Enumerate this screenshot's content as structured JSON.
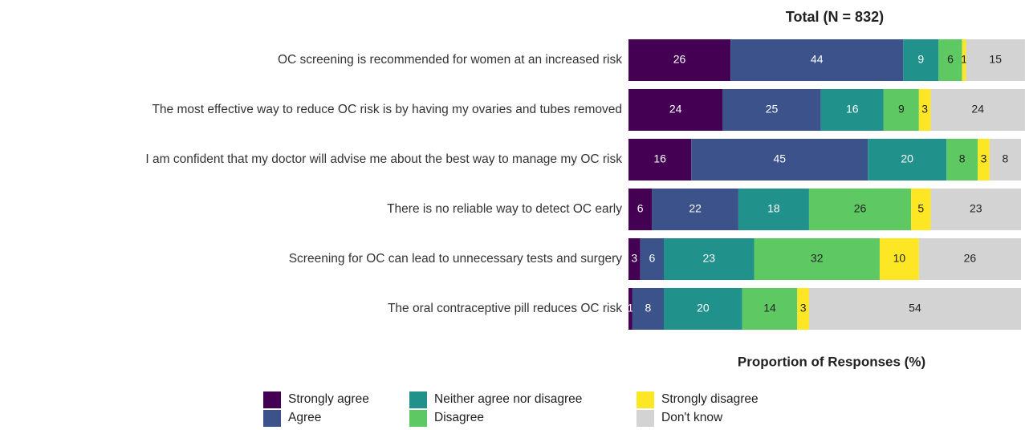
{
  "chart_data": {
    "type": "stacked-bar-horizontal",
    "title": "Total (N = 832)",
    "x_label": "Proportion of Responses (%)",
    "categories": [
      "OC screening is recommended for women at an increased risk",
      "The most effective way to reduce OC risk is by having my ovaries and tubes removed",
      "I am confident that my doctor will advise me about the best way to manage my OC risk",
      "There is no reliable way to detect OC early",
      "Screening for OC can lead to unnecessary tests and surgery",
      "The oral contraceptive pill reduces OC risk"
    ],
    "xlim": [
      0,
      100
    ],
    "legend": "bottom",
    "series": [
      {
        "name": "Strongly agree",
        "color": "#440154",
        "values": [
          26,
          24,
          16,
          6,
          3,
          1
        ]
      },
      {
        "name": "Agree",
        "color": "#3b528b",
        "values": [
          44,
          25,
          45,
          22,
          6,
          8
        ]
      },
      {
        "name": "Neither agree nor disagree",
        "color": "#21918c",
        "values": [
          9,
          16,
          20,
          18,
          23,
          20
        ]
      },
      {
        "name": "Disagree",
        "color": "#5ec962",
        "values": [
          6,
          9,
          8,
          26,
          32,
          14
        ]
      },
      {
        "name": "Strongly disagree",
        "color": "#fde725",
        "values": [
          1,
          3,
          3,
          5,
          10,
          3
        ]
      },
      {
        "name": "Don't know",
        "color": "#d3d3d3",
        "values": [
          15,
          24,
          8,
          23,
          26,
          54
        ]
      }
    ]
  }
}
